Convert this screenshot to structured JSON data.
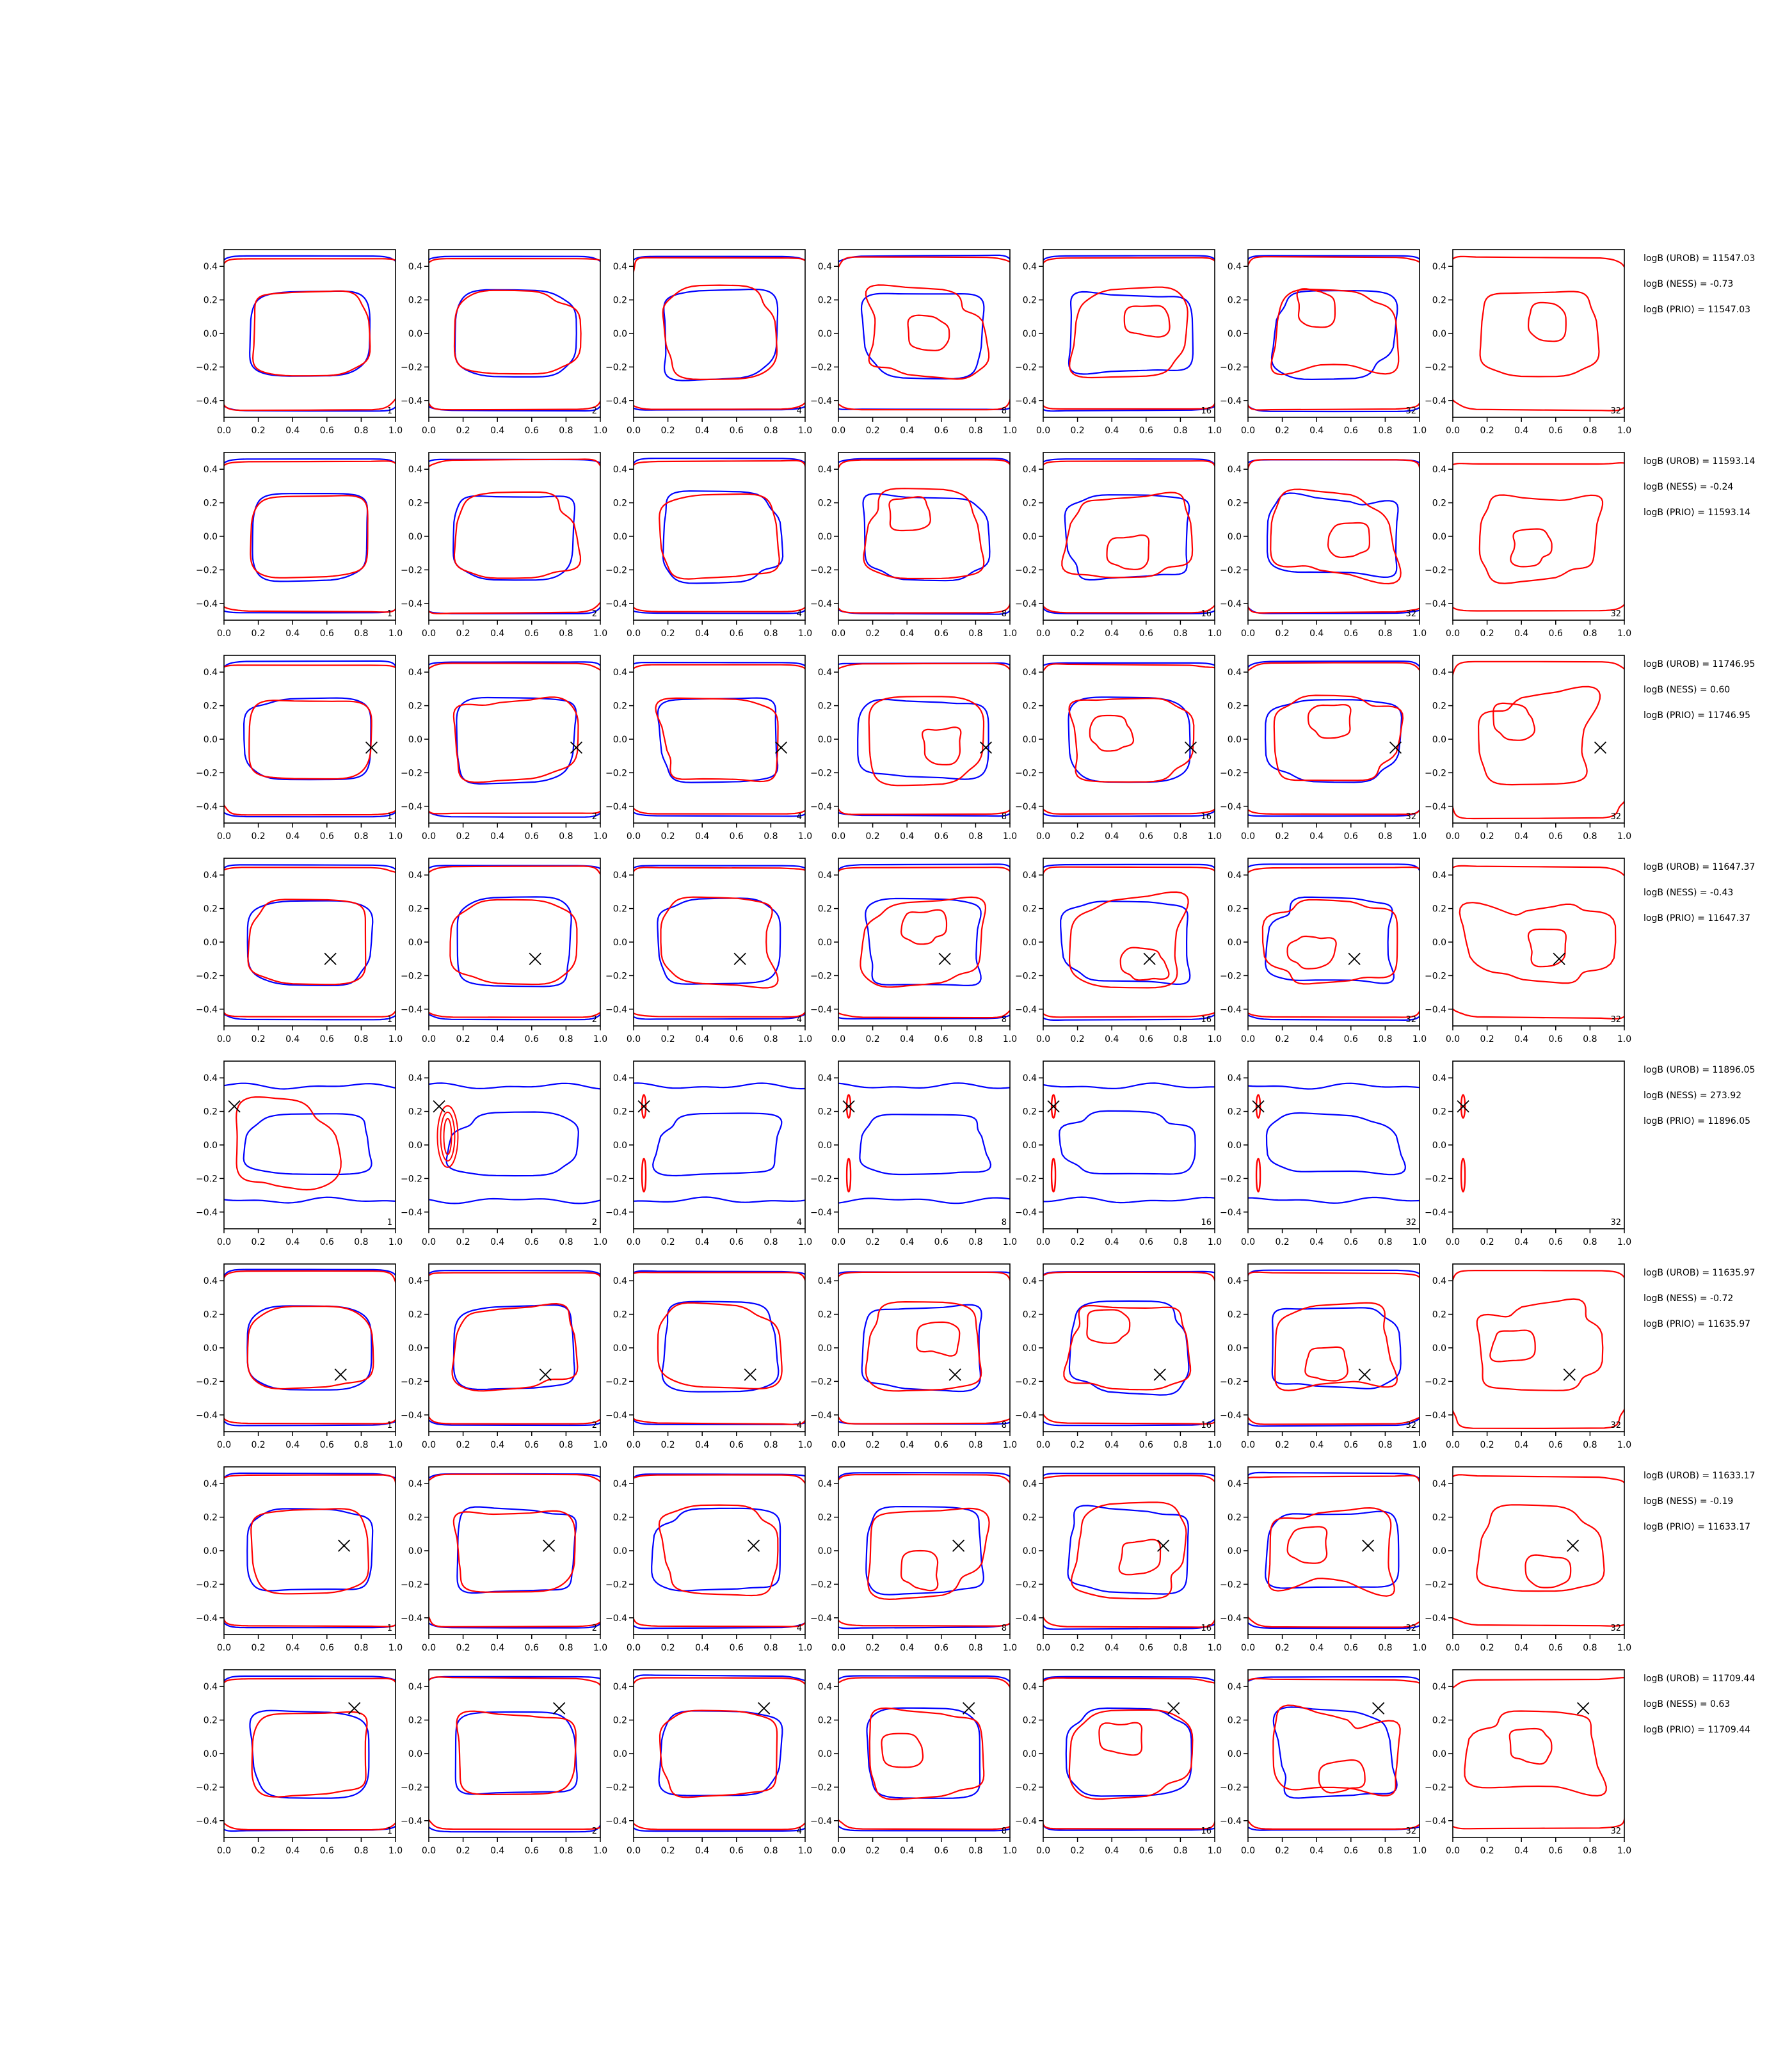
{
  "chart_data": {
    "type": "line",
    "description_grid": "8 rows x 7 contour panels; each row followed by a logB annotation block",
    "xlim": [
      0.0,
      1.0
    ],
    "ylim": [
      -0.5,
      0.5
    ],
    "x_ticks": [
      "0.0",
      "0.2",
      "0.4",
      "0.6",
      "0.8",
      "1.0"
    ],
    "y_ticks": [
      "0.4",
      "0.2",
      "0.0",
      "−0.2",
      "−0.4"
    ],
    "y_tick_values": [
      0.4,
      0.2,
      0.0,
      -0.2,
      -0.4
    ],
    "panel_labels": [
      "1",
      "2",
      "4",
      "8",
      "16",
      "32",
      "32"
    ],
    "colors": {
      "series_a": "#ff0000",
      "series_b": "#0000ff",
      "marker": "#000000"
    },
    "rows": [
      {
        "marker": null,
        "logB": [
          "logB (UROB) = 11547.03",
          "logB (NESS) = -0.73",
          "logB (PRIO) = 11547.03"
        ]
      },
      {
        "marker": null,
        "logB": [
          "logB (UROB) = 11593.14",
          "logB (NESS) = -0.24",
          "logB (PRIO) = 11593.14"
        ]
      },
      {
        "marker": [
          0.86,
          -0.05
        ],
        "logB": [
          "logB (UROB) = 11746.95",
          "logB (NESS) = 0.60",
          "logB (PRIO) = 11746.95"
        ]
      },
      {
        "marker": [
          0.62,
          -0.1
        ],
        "logB": [
          "logB (UROB) = 11647.37",
          "logB (NESS) = -0.43",
          "logB (PRIO) = 11647.37"
        ]
      },
      {
        "marker": [
          0.06,
          0.23
        ],
        "logB": [
          "logB (UROB) = 11896.05",
          "logB (NESS) = 273.92",
          "logB (PRIO) = 11896.05"
        ]
      },
      {
        "marker": [
          0.68,
          -0.16
        ],
        "logB": [
          "logB (UROB) = 11635.97",
          "logB (NESS) = -0.72",
          "logB (PRIO) = 11635.97"
        ]
      },
      {
        "marker": [
          0.7,
          0.03
        ],
        "logB": [
          "logB (UROB) = 11633.17",
          "logB (NESS) = -0.19",
          "logB (PRIO) = 11633.17"
        ]
      },
      {
        "marker": [
          0.76,
          0.27
        ],
        "logB": [
          "logB (UROB) = 11709.44",
          "logB (NESS) = 0.63",
          "logB (PRIO) = 11709.44"
        ]
      }
    ]
  }
}
